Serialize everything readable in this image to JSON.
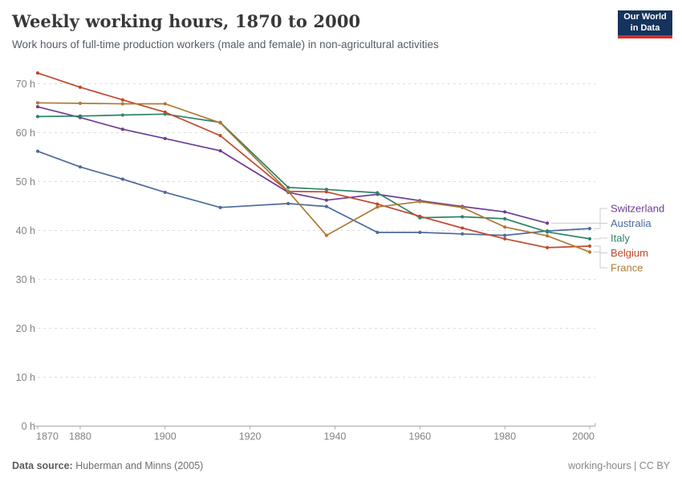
{
  "header": {
    "title": "Weekly working hours, 1870 to 2000",
    "subtitle": "Work hours of full-time production workers (male and female) in non-agricultural activities"
  },
  "logo": {
    "line1": "Our World",
    "line2": "in Data",
    "bg_color": "#15335c",
    "accent_color": "#d0312d"
  },
  "chart_data": {
    "type": "line",
    "title": "Weekly working hours, 1870 to 2000",
    "xlabel": "",
    "ylabel": "",
    "x": [
      1870,
      1880,
      1890,
      1900,
      1913,
      1929,
      1938,
      1950,
      1960,
      1970,
      1980,
      1990,
      2000
    ],
    "series": [
      {
        "name": "Switzerland",
        "color": "#6d3e91",
        "values": [
          65.3,
          63.1,
          60.7,
          58.8,
          56.3,
          47.8,
          46.2,
          47.4,
          46.1,
          44.9,
          43.8,
          41.5,
          null
        ]
      },
      {
        "name": "Australia",
        "color": "#4c6a9c",
        "values": [
          56.2,
          53.0,
          50.5,
          47.8,
          44.7,
          45.5,
          44.9,
          39.6,
          39.6,
          39.3,
          39.0,
          39.9,
          40.4
        ]
      },
      {
        "name": "Italy",
        "color": "#2c8465",
        "values": [
          63.3,
          63.4,
          63.6,
          63.8,
          62.1,
          48.8,
          48.4,
          47.7,
          42.6,
          42.8,
          42.4,
          39.7,
          38.3
        ]
      },
      {
        "name": "Belgium",
        "color": "#c0492c",
        "values": [
          72.2,
          69.3,
          66.7,
          64.2,
          59.4,
          48.0,
          47.9,
          45.4,
          42.9,
          40.5,
          38.3,
          36.5,
          36.8
        ]
      },
      {
        "name": "France",
        "color": "#ae7936",
        "values": [
          66.1,
          66.0,
          65.9,
          65.9,
          62.0,
          48.0,
          39.0,
          44.8,
          45.9,
          44.7,
          40.7,
          38.9,
          35.6
        ]
      }
    ],
    "xlim": [
      1870,
      2000
    ],
    "ylim": [
      0,
      72.5
    ],
    "xticks": [
      1870,
      1880,
      1900,
      1920,
      1940,
      1960,
      1980,
      2000
    ],
    "yticks": [
      0,
      10,
      20,
      30,
      40,
      50,
      60,
      70
    ],
    "ytick_suffix": " h",
    "grid": "dashed-horizontal",
    "legend_position": "right",
    "legend_order": [
      "Switzerland",
      "Australia",
      "Italy",
      "Belgium",
      "France"
    ]
  },
  "footer": {
    "source_label": "Data source:",
    "source_value": " Huberman and Minns (2005)",
    "note": "working-hours | CC BY"
  }
}
